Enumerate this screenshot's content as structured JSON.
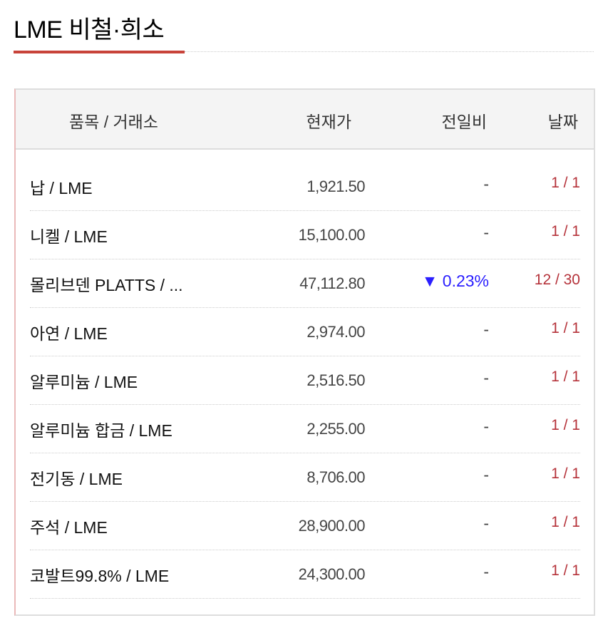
{
  "title": "LME 비철·희소",
  "header": {
    "item": "품목 / 거래소",
    "price": "현재가",
    "change": "전일비",
    "date": "날짜"
  },
  "colors": {
    "accent": "#c8433a",
    "down": "#2b1fff",
    "date": "#b5323a"
  },
  "rows": [
    {
      "name": "납 / LME",
      "price": "1,921.50",
      "change": "-",
      "direction": "none",
      "date": "1 / 1"
    },
    {
      "name": "니켈 / LME",
      "price": "15,100.00",
      "change": "-",
      "direction": "none",
      "date": "1 / 1"
    },
    {
      "name": "몰리브덴 PLATTS / ...",
      "price": "47,112.80",
      "change": "▼ 0.23%",
      "direction": "down",
      "date": "12 / 30"
    },
    {
      "name": "아연 / LME",
      "price": "2,974.00",
      "change": "-",
      "direction": "none",
      "date": "1 / 1"
    },
    {
      "name": "알루미늄 / LME",
      "price": "2,516.50",
      "change": "-",
      "direction": "none",
      "date": "1 / 1"
    },
    {
      "name": "알루미늄 합금 / LME",
      "price": "2,255.00",
      "change": "-",
      "direction": "none",
      "date": "1 / 1"
    },
    {
      "name": "전기동 / LME",
      "price": "8,706.00",
      "change": "-",
      "direction": "none",
      "date": "1 / 1"
    },
    {
      "name": "주석 / LME",
      "price": "28,900.00",
      "change": "-",
      "direction": "none",
      "date": "1 / 1"
    },
    {
      "name": "코발트99.8% / LME",
      "price": "24,300.00",
      "change": "-",
      "direction": "none",
      "date": "1 / 1"
    }
  ]
}
